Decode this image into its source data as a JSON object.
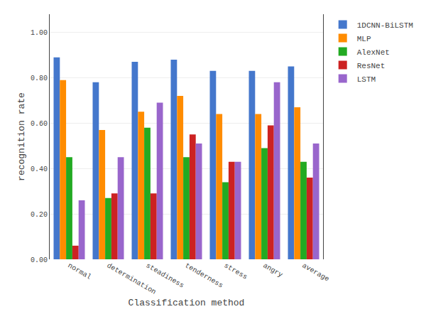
{
  "chart_data": {
    "type": "bar",
    "categories": [
      "normal",
      "determination",
      "steadiness",
      "tenderness",
      "stress",
      "angry",
      "average"
    ],
    "series": [
      {
        "name": "1DCNN-BiLSTM",
        "color": "#4477CC",
        "values": [
          0.89,
          0.78,
          0.87,
          0.88,
          0.83,
          0.83,
          0.85
        ]
      },
      {
        "name": "MLP",
        "color": "#FF8C00",
        "values": [
          0.79,
          0.57,
          0.65,
          0.72,
          0.64,
          0.64,
          0.67
        ]
      },
      {
        "name": "AlexNet",
        "color": "#22AA22",
        "values": [
          0.45,
          0.27,
          0.58,
          0.45,
          0.34,
          0.49,
          0.43
        ]
      },
      {
        "name": "ResNet",
        "color": "#CC2222",
        "values": [
          0.06,
          0.29,
          0.29,
          0.55,
          0.43,
          0.59,
          0.36
        ]
      },
      {
        "name": "LSTM",
        "color": "#9966CC",
        "values": [
          0.26,
          0.45,
          0.69,
          0.51,
          0.43,
          0.78,
          0.51
        ]
      }
    ],
    "xlabel": "Classification method",
    "ylabel": "recognition rate",
    "ylim": [
      0.0,
      1.08
    ],
    "yticks": [
      {
        "value": 0.0,
        "label": "0.00"
      },
      {
        "value": 0.2,
        "label": "0.20"
      },
      {
        "value": 0.4,
        "label": "0.40"
      },
      {
        "value": 0.6,
        "label": "0.60"
      },
      {
        "value": 0.8,
        "label": "0.80"
      },
      {
        "value": 1.0,
        "label": "1.00"
      }
    ],
    "grid": true,
    "legend": "upper right"
  }
}
